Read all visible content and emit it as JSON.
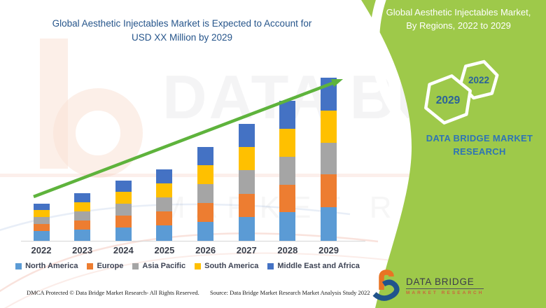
{
  "chart": {
    "title_line1": "Global Aesthetic Injectables Market is Expected to Account for",
    "title_line2": "USD XX Million by 2029"
  },
  "chart_data": {
    "type": "bar",
    "stacked": true,
    "title": "Global Aesthetic Injectables Market is Expected to Account for USD XX Million by 2029",
    "categories": [
      "2022",
      "2023",
      "2024",
      "2025",
      "2026",
      "2027",
      "2028",
      "2029"
    ],
    "series": [
      {
        "name": "North America",
        "color": "#5B9BD5",
        "values": [
          14,
          16,
          19,
          22,
          27,
          34,
          41,
          48
        ]
      },
      {
        "name": "Europe",
        "color": "#ED7D31",
        "values": [
          10,
          13,
          17,
          20,
          27,
          33,
          39,
          47
        ]
      },
      {
        "name": "Asia Pacific",
        "color": "#A5A5A5",
        "values": [
          10,
          13,
          17,
          20,
          27,
          34,
          40,
          45
        ]
      },
      {
        "name": "South America",
        "color": "#FFC000",
        "values": [
          10,
          13,
          17,
          20,
          27,
          33,
          40,
          46
        ]
      },
      {
        "name": "Middle East and Africa",
        "color": "#4472C4",
        "values": [
          9,
          13,
          16,
          20,
          26,
          33,
          40,
          47
        ]
      }
    ],
    "xlabel": "",
    "ylabel": "",
    "ylim": [
      0,
      240
    ],
    "y_axis_labels_visible": false,
    "legend_position": "bottom",
    "trend_arrow": {
      "direction": "up-right",
      "color": "#5EB33C"
    }
  },
  "right_panel": {
    "title_line1": "Global Aesthetic Injectables Market,",
    "title_line2": "By Regions, 2022 to 2029",
    "hexagon_back_year": "2022",
    "hexagon_front_year": "2029",
    "brand_line1": "DATA BRIDGE MARKET",
    "brand_line2": "RESEARCH",
    "background_color": "#9EC94A"
  },
  "watermark": {
    "line1": "DATA BRIDGE",
    "line2": "MARKET RESEARCH"
  },
  "footer": {
    "dmca": "DMCA Protected © Data Bridge Market Research- All Rights Reserved.",
    "source": "Source: Data Bridge Market Research Market Analysis Study 2022"
  },
  "logo": {
    "name": "DATA BRIDGE",
    "subtitle": "MARKET RESEARCH"
  },
  "colors": {
    "title_text": "#26558B",
    "panel_green": "#9EC94A",
    "arrow_green": "#5EB33C",
    "axis_label": "#3A3F4B",
    "brand_blue": "#2E74B5",
    "hexagon_year_text": "#2B6399",
    "logo_orange": "#E87424",
    "logo_blue": "#20548C"
  }
}
